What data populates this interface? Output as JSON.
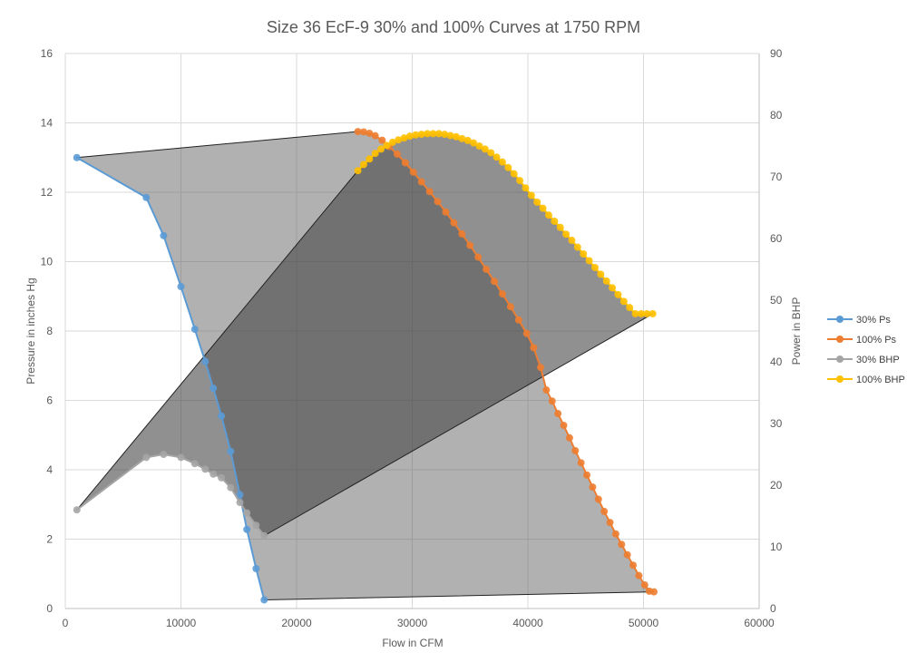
{
  "chart_data": {
    "type": "scatter",
    "title": "Size 36 EcF-9 30% and 100% Curves at 1750 RPM",
    "xlabel": "Flow in CFM",
    "ylabel": "Pressure in inches Hg",
    "y2label": "Power in BHP",
    "xlim": [
      0,
      60000
    ],
    "ylim": [
      0,
      16
    ],
    "y2lim": [
      0,
      90
    ],
    "xticks": [
      "0",
      "10000",
      "20000",
      "30000",
      "40000",
      "50000",
      "60000"
    ],
    "yticks": [
      "0",
      "2",
      "4",
      "6",
      "8",
      "10",
      "12",
      "14",
      "16"
    ],
    "y2ticks": [
      "0",
      "10",
      "20",
      "30",
      "40",
      "50",
      "60",
      "70",
      "80",
      "90"
    ],
    "grid": true,
    "legend_position": "right",
    "series": [
      {
        "name": "30% Ps",
        "axis": "left",
        "color": "#5b9bd5",
        "x": [
          1000,
          7000,
          8500,
          10000,
          11200,
          12100,
          12800,
          13500,
          14300,
          15100,
          15700,
          16500,
          17200
        ],
        "y": [
          13.0,
          11.85,
          10.75,
          9.28,
          8.05,
          7.12,
          6.35,
          5.55,
          4.53,
          3.28,
          2.28,
          1.15,
          0.25
        ]
      },
      {
        "name": "100% Ps",
        "axis": "left",
        "color": "#ed7d31",
        "x": [
          25300,
          25800,
          26300,
          26800,
          27400,
          28000,
          28700,
          29400,
          30100,
          30800,
          31500,
          32200,
          32900,
          33600,
          34300,
          35000,
          35700,
          36400,
          37100,
          37800,
          38500,
          39200,
          39900,
          40500,
          41100,
          41600,
          42100,
          42600,
          43100,
          43600,
          44100,
          44600,
          45100,
          45600,
          46100,
          46600,
          47100,
          47600,
          48100,
          48600,
          49100,
          49600,
          50100,
          50500,
          50900
        ],
        "y": [
          13.75,
          13.74,
          13.7,
          13.63,
          13.5,
          13.32,
          13.1,
          12.85,
          12.58,
          12.3,
          12.02,
          11.73,
          11.43,
          11.12,
          10.8,
          10.47,
          10.13,
          9.78,
          9.43,
          9.07,
          8.7,
          8.32,
          7.93,
          7.52,
          6.95,
          6.3,
          5.98,
          5.62,
          5.28,
          4.92,
          4.55,
          4.2,
          3.85,
          3.5,
          3.15,
          2.8,
          2.48,
          2.15,
          1.85,
          1.55,
          1.25,
          0.95,
          0.68,
          0.5,
          0.48
        ]
      },
      {
        "name": "30% BHP",
        "axis": "right",
        "color": "#a5a5a5",
        "x": [
          1000,
          7000,
          8500,
          10000,
          11200,
          12100,
          12800,
          13500,
          14300,
          15100,
          15700,
          16500,
          17200
        ],
        "y": [
          16.0,
          24.5,
          25.0,
          24.5,
          23.5,
          22.6,
          21.8,
          21.2,
          19.6,
          17.2,
          15.5,
          13.5,
          11.8
        ]
      },
      {
        "name": "100% BHP",
        "axis": "right",
        "color": "#ffc000",
        "x": [
          25300,
          25800,
          26300,
          26800,
          27300,
          27800,
          28300,
          28800,
          29300,
          29800,
          30300,
          30800,
          31300,
          31800,
          32300,
          32800,
          33300,
          33800,
          34300,
          34800,
          35300,
          35800,
          36300,
          36800,
          37300,
          37800,
          38300,
          38800,
          39300,
          39800,
          40300,
          40800,
          41300,
          41800,
          42300,
          42800,
          43300,
          43800,
          44300,
          44800,
          45300,
          45800,
          46300,
          46800,
          47300,
          47800,
          48300,
          48800,
          49300,
          49800,
          50300,
          50800
        ],
        "y": [
          71.0,
          72.0,
          72.9,
          73.8,
          74.5,
          75.1,
          75.6,
          76.0,
          76.3,
          76.6,
          76.8,
          76.9,
          77.0,
          77.0,
          77.0,
          76.9,
          76.7,
          76.5,
          76.2,
          75.9,
          75.5,
          75.0,
          74.5,
          73.9,
          73.2,
          72.4,
          71.5,
          70.5,
          69.4,
          68.2,
          67.0,
          65.9,
          64.9,
          63.8,
          62.8,
          61.8,
          60.7,
          59.7,
          58.6,
          57.5,
          56.4,
          55.3,
          54.2,
          53.1,
          52.0,
          50.9,
          49.8,
          48.8,
          47.8,
          47.8,
          47.8,
          47.8
        ]
      }
    ]
  }
}
